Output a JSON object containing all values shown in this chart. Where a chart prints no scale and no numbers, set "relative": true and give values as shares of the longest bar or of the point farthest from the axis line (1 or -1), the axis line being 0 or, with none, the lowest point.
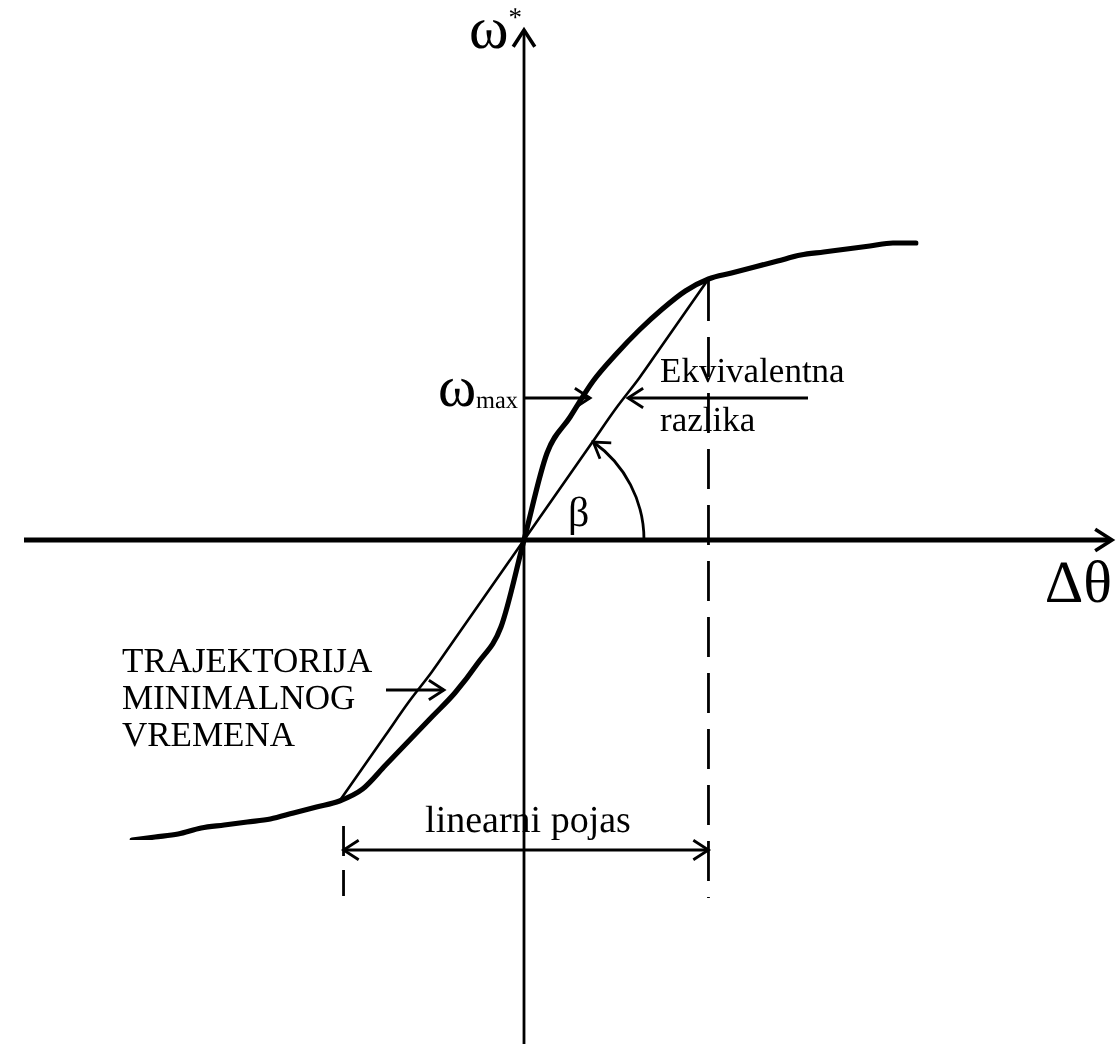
{
  "chart_data": {
    "type": "line",
    "relative": true,
    "xlabel": "Δθ",
    "ylabel": "ω$^{*}$",
    "categories": [
      null,
      null,
      null,
      null,
      null,
      null,
      null,
      null,
      null,
      null,
      null,
      null,
      null,
      null,
      null,
      null,
      null,
      null,
      null,
      null,
      null,
      null,
      null,
      null,
      null,
      null,
      null,
      null,
      null,
      null,
      null,
      null,
      null,
      null,
      null
    ],
    "series": [
      {
        "color": "#000000",
        "values": [
          -1,
          -0.99,
          -0.98,
          -0.96,
          -0.95,
          -0.94,
          -0.93,
          -0.91,
          -0.89,
          -0.87,
          -0.83,
          -0.75,
          -0.67,
          -0.59,
          -0.51,
          -0.41,
          -0.29,
          0,
          0.29,
          0.41,
          0.53,
          0.62,
          0.7,
          0.77,
          0.83,
          0.87,
          0.89,
          0.91,
          0.93,
          0.95,
          0.96,
          0.97,
          0.98,
          0.99,
          0.99
        ]
      },
      {
        "color": "#000000",
        "values": [
          null,
          null,
          null,
          null,
          null,
          null,
          null,
          null,
          null,
          -0.87,
          -0.76,
          -0.65,
          -0.54,
          -0.44,
          -0.33,
          -0.22,
          -0.11,
          0,
          0.11,
          0.22,
          0.33,
          0.44,
          0.54,
          0.65,
          0.76,
          0.87,
          null,
          null,
          null,
          null,
          null,
          null,
          null,
          null,
          null
        ]
      }
    ],
    "annotations": [
      "Ekvivalentna razlika",
      "ω$_{max}$",
      "β",
      "TRAJEKTORIJA MINIMALNOG VREMENA",
      "linearni pojas"
    ]
  }
}
